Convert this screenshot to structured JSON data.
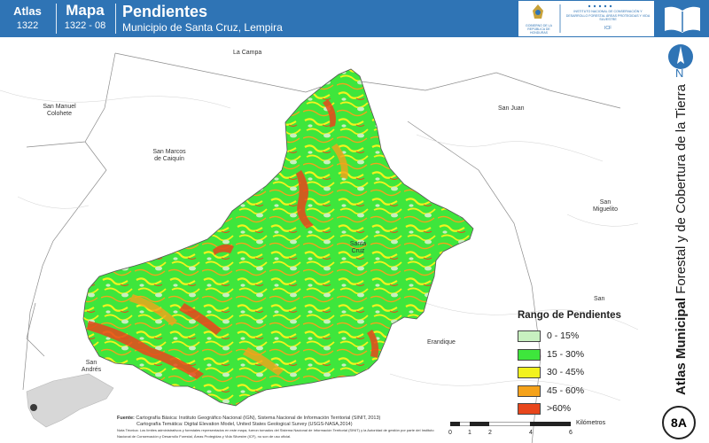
{
  "header": {
    "atlas_label": "Atlas",
    "atlas_code": "1322",
    "mapa_label": "Mapa",
    "mapa_code": "1322 - 08",
    "title": "Pendientes",
    "subtitle": "Municipio de Santa Cruz, Lempira",
    "logo_left_text": "GOBIERNO DE LA REPÚBLICA DE HONDURAS",
    "logo_right_text": "INSTITUTO NACIONAL DE CONSERVACIÓN Y DESARROLLO FORESTAL ÁREAS PROTEGIDAS Y VIDA SILVESTRE",
    "logo_right_short": "ICF",
    "brand_color": "#2f74b5"
  },
  "side": {
    "north_letter": "N",
    "vertical_title_bold": "Atlas Municipal",
    "vertical_title_rest": " Forestal y de Cobertura de la Tierra",
    "badge": "8A"
  },
  "places": {
    "la_campa": "La Campa",
    "san_manuel": "San Manuel Colohete",
    "san_marcos": "San Marcos de Caiquín",
    "san_juan": "San Juan",
    "santa_cruz": "Santa Cruz",
    "erandique": "Erandique",
    "san_andres": "San Andrés",
    "san_miguelito": "San Miguelito",
    "san_x": "San"
  },
  "legend": {
    "title": "Rango de Pendientes",
    "items": [
      {
        "label": "0 - 15%",
        "color": "#c8f0c0"
      },
      {
        "label": "15 - 30%",
        "color": "#3ee63c"
      },
      {
        "label": "30 - 45%",
        "color": "#f2f21e"
      },
      {
        "label": "45 - 60%",
        "color": "#f5a21a"
      },
      {
        "label": ">60%",
        "color": "#e8461c"
      }
    ]
  },
  "scale": {
    "ticks": [
      "0",
      "1",
      "2",
      "4",
      "6"
    ],
    "unit": "Kilómetros"
  },
  "source": {
    "label": "Fuente:",
    "line1": "Cartografía Básica: Instituto Geográfico Nacional (IGN), Sistema Nacional de Información Territorial (SINIT, 2013)",
    "line2": "Cartografía Temática: Digital Elevation Model, United States Geological Survey (USGS-NASA,2014)",
    "note": "Nota Técnica: Los límites administrativos y forestales representados en este mapa, fueron tomados del Sistema Nacional de Información Territorial (SINIT) y la Autoridad de gestión por parte del Instituto Nacional de Conservación y Desarrollo Forestal, Áreas Protegidas y Vida Silvestre (ICF), no son de uso oficial."
  }
}
